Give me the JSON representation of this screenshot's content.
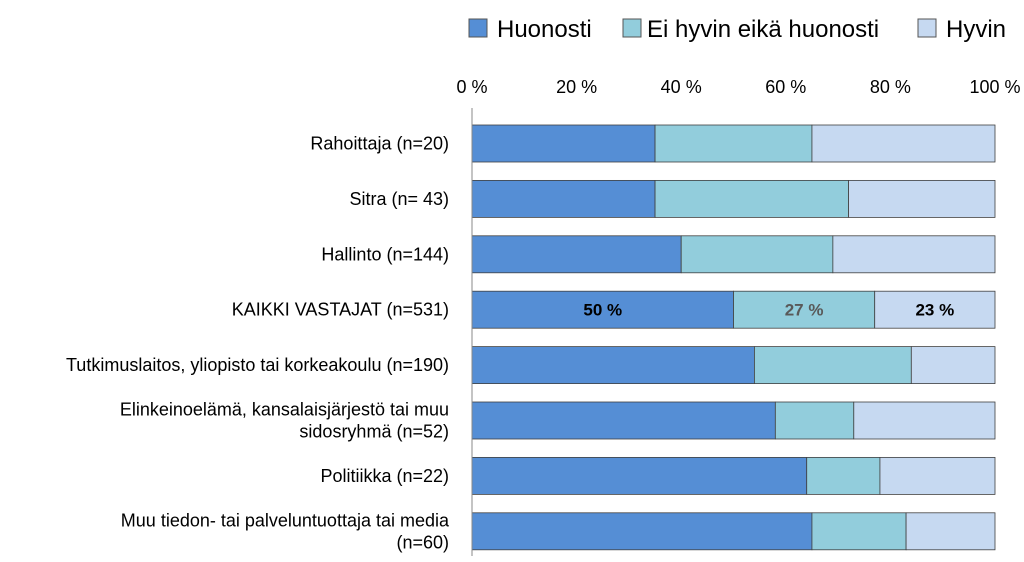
{
  "chart_data": {
    "type": "bar",
    "orientation": "horizontal",
    "stacked": "percent",
    "title": "",
    "xlabel": "",
    "ylabel": "",
    "xlim": [
      0,
      100
    ],
    "x_ticks": [
      "0 %",
      "20 %",
      "40 %",
      "60 %",
      "80 %",
      "100 %"
    ],
    "x_axis_position": "top",
    "legend_position": "top-right",
    "grid": false,
    "categories": [
      [
        "Rahoittaja (n=20)"
      ],
      [
        "Sitra (n= 43)"
      ],
      [
        "Hallinto (n=144)"
      ],
      [
        "KAIKKI VASTAJAT (n=531)"
      ],
      [
        "Tutkimuslaitos, yliopisto tai korkeakoulu (n=190)"
      ],
      [
        "Elinkeinoelämä, kansalaisjärjestö tai muu",
        "sidosryhmä (n=52)"
      ],
      [
        "Politiikka (n=22)"
      ],
      [
        "Muu tiedon- tai palveluntuottaja tai media",
        "(n=60)"
      ]
    ],
    "series": [
      {
        "name": "Huonosti",
        "color": "#558ED5",
        "values": [
          35,
          35,
          40,
          50,
          54,
          58,
          64,
          65
        ]
      },
      {
        "name": "Ei hyvin eikä huonosti",
        "color": "#92CDDC",
        "values": [
          30,
          37,
          29,
          27,
          30,
          15,
          14,
          18
        ]
      },
      {
        "name": "Hyvin",
        "color": "#C6D9F1",
        "values": [
          35,
          28,
          31,
          23,
          16,
          27,
          22,
          17
        ]
      }
    ],
    "data_labels": [
      {
        "category_index": 3,
        "series_index": 0,
        "text": "50 %",
        "color": "#000000"
      },
      {
        "category_index": 3,
        "series_index": 1,
        "text": "27 %",
        "color": "#595959"
      },
      {
        "category_index": 3,
        "series_index": 2,
        "text": "23 %",
        "color": "#000000"
      }
    ]
  }
}
